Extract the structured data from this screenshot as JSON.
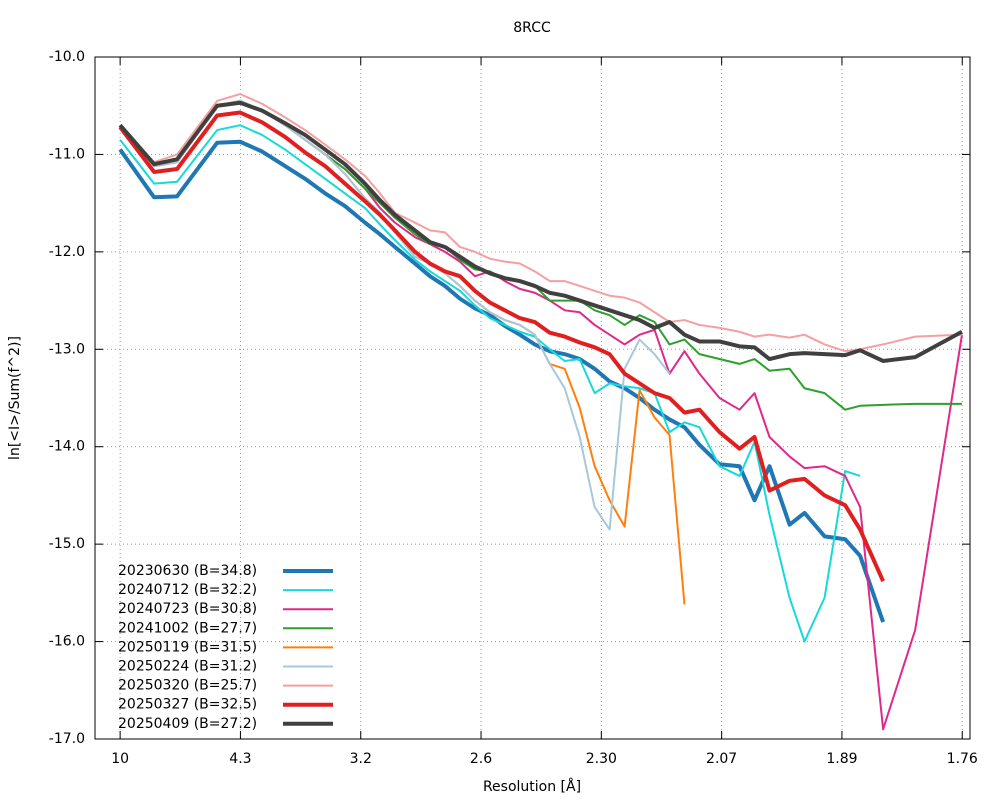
{
  "chart_data": {
    "type": "line",
    "title": "8RCC",
    "x_label": "Resolution [Å]",
    "y_label": "ln[<I>/Sum(f^2)]",
    "x": [
      0.01,
      0.0227,
      0.0313,
      0.0463,
      0.0549,
      0.0631,
      0.0717,
      0.0792,
      0.0867,
      0.0941,
      0.1016,
      0.1072,
      0.1128,
      0.1203,
      0.1259,
      0.1315,
      0.1371,
      0.1427,
      0.1483,
      0.1539,
      0.1595,
      0.1651,
      0.1707,
      0.1763,
      0.1819,
      0.1875,
      0.1931,
      0.1987,
      0.2043,
      0.2099,
      0.2155,
      0.2211,
      0.2267,
      0.2342,
      0.2417,
      0.2473,
      0.2529,
      0.2604,
      0.266,
      0.2735,
      0.2812,
      0.2868,
      0.2954,
      0.3074,
      0.3249
    ],
    "xlim": [
      0.0006,
      0.3279
    ],
    "xticks": [
      {
        "value": 0.01,
        "label": "10"
      },
      {
        "value": 0.055,
        "label": "4.3"
      },
      {
        "value": 0.1,
        "label": "3.2"
      },
      {
        "value": 0.145,
        "label": "2.6"
      },
      {
        "value": 0.19,
        "label": "2.30"
      },
      {
        "value": 0.235,
        "label": "2.07"
      },
      {
        "value": 0.28,
        "label": "1.89"
      },
      {
        "value": 0.325,
        "label": "1.76"
      }
    ],
    "ylim": [
      -17,
      -10
    ],
    "yticks": [
      {
        "value": -10,
        "label": "-10.0"
      },
      {
        "value": -11,
        "label": "-11.0"
      },
      {
        "value": -12,
        "label": "-12.0"
      },
      {
        "value": -13,
        "label": "-13.0"
      },
      {
        "value": -14,
        "label": "-14.0"
      },
      {
        "value": -15,
        "label": "-15.0"
      },
      {
        "value": -16,
        "label": "-16.0"
      },
      {
        "value": -17,
        "label": "-17.0"
      }
    ],
    "grid": true,
    "legend": "lower left",
    "series": [
      {
        "name": "20230630 (B=34.8)",
        "color": "#1f77b4",
        "width": 4,
        "values": [
          -10.95,
          -11.44,
          -11.43,
          -10.88,
          -10.87,
          -10.97,
          -11.12,
          -11.25,
          -11.4,
          -11.53,
          -11.7,
          -11.82,
          -11.95,
          -12.12,
          -12.25,
          -12.35,
          -12.48,
          -12.58,
          -12.65,
          -12.76,
          -12.85,
          -12.95,
          -13.02,
          -13.05,
          -13.1,
          -13.2,
          -13.33,
          -13.4,
          -13.5,
          -13.62,
          -13.72,
          -13.8,
          -13.98,
          -14.18,
          -14.2,
          -14.55,
          -14.2,
          -14.8,
          -14.68,
          -14.92,
          -14.95,
          -15.12,
          -15.8,
          null,
          null
        ]
      },
      {
        "name": "20240712 (B=32.2)",
        "color": "#17d9d9",
        "width": 2,
        "values": [
          -10.85,
          -11.3,
          -11.28,
          -10.75,
          -10.7,
          -10.8,
          -10.95,
          -11.1,
          -11.25,
          -11.4,
          -11.55,
          -11.72,
          -11.88,
          -12.08,
          -12.2,
          -12.3,
          -12.4,
          -12.55,
          -12.68,
          -12.75,
          -12.82,
          -12.87,
          -13.0,
          -13.12,
          -13.1,
          -13.45,
          -13.35,
          -13.38,
          -13.4,
          -13.45,
          -13.85,
          -13.75,
          -13.8,
          -14.2,
          -14.3,
          -13.95,
          -14.7,
          -15.55,
          -16.0,
          -15.55,
          -14.25,
          -14.3,
          null,
          null,
          null
        ]
      },
      {
        "name": "20240723 (B=30.8)",
        "color": "#e0288a",
        "width": 2,
        "values": [
          -10.72,
          -11.12,
          -11.08,
          -10.5,
          -10.45,
          -10.55,
          -10.7,
          -10.85,
          -11.0,
          -11.15,
          -11.35,
          -11.55,
          -11.7,
          -11.85,
          -11.92,
          -12.0,
          -12.1,
          -12.25,
          -12.2,
          -12.3,
          -12.38,
          -12.42,
          -12.5,
          -12.6,
          -12.62,
          -12.75,
          -12.85,
          -12.95,
          -12.85,
          -12.8,
          -13.25,
          -13.02,
          -13.25,
          -13.5,
          -13.62,
          -13.45,
          -13.9,
          -14.1,
          -14.22,
          -14.2,
          -14.3,
          -14.62,
          -16.9,
          -15.88,
          -12.85
        ]
      },
      {
        "name": "20241002 (B=27.7)",
        "color": "#2ca02c",
        "width": 2,
        "values": [
          -10.72,
          -11.1,
          -11.05,
          -10.5,
          -10.45,
          -10.55,
          -10.7,
          -10.85,
          -11.0,
          -11.15,
          -11.35,
          -11.5,
          -11.65,
          -11.82,
          -11.92,
          -11.95,
          -12.08,
          -12.18,
          -12.2,
          -12.28,
          -12.3,
          -12.35,
          -12.5,
          -12.5,
          -12.5,
          -12.6,
          -12.65,
          -12.75,
          -12.65,
          -12.72,
          -12.95,
          -12.9,
          -13.05,
          -13.1,
          -13.15,
          -13.1,
          -13.22,
          -13.2,
          -13.4,
          -13.45,
          -13.62,
          -13.58,
          -13.57,
          -13.56,
          -13.56
        ]
      },
      {
        "name": "20250119 (B=31.5)",
        "color": "#ff7f0e",
        "width": 2,
        "values": [
          -10.72,
          -11.12,
          -11.08,
          -10.5,
          -10.45,
          -10.55,
          -10.7,
          -10.85,
          -11.0,
          -11.2,
          -11.45,
          -11.6,
          -11.8,
          -12.05,
          -12.12,
          -12.22,
          -12.35,
          -12.5,
          -12.62,
          -12.7,
          -12.75,
          -12.85,
          -13.15,
          -13.2,
          -13.6,
          -14.2,
          -14.55,
          -14.82,
          -13.42,
          -13.7,
          -13.88,
          -15.62,
          null,
          null,
          null,
          null,
          null,
          null,
          null,
          null,
          null,
          null,
          null,
          null,
          null
        ]
      },
      {
        "name": "20250224 (B=31.2)",
        "color": "#a6c8dc",
        "width": 2,
        "values": [
          -10.72,
          -11.12,
          -11.08,
          -10.5,
          -10.45,
          -10.55,
          -10.7,
          -10.85,
          -11.0,
          -11.2,
          -11.45,
          -11.6,
          -11.8,
          -12.05,
          -12.12,
          -12.22,
          -12.35,
          -12.5,
          -12.62,
          -12.7,
          -12.75,
          -12.85,
          -13.15,
          -13.4,
          -13.9,
          -14.62,
          -14.85,
          -13.2,
          -12.9,
          -13.05,
          -13.25,
          null,
          null,
          null,
          null,
          null,
          null,
          null,
          null,
          null,
          null,
          null,
          null,
          null,
          null
        ]
      },
      {
        "name": "20250320 (B=25.7)",
        "color": "#f4a0a0",
        "width": 2,
        "values": [
          -10.7,
          -11.08,
          -11.0,
          -10.45,
          -10.38,
          -10.48,
          -10.62,
          -10.75,
          -10.9,
          -11.05,
          -11.22,
          -11.4,
          -11.6,
          -11.7,
          -11.78,
          -11.8,
          -11.95,
          -12.0,
          -12.07,
          -12.1,
          -12.12,
          -12.2,
          -12.3,
          -12.3,
          -12.35,
          -12.4,
          -12.45,
          -12.47,
          -12.52,
          -12.62,
          -12.72,
          -12.7,
          -12.75,
          -12.78,
          -12.82,
          -12.87,
          -12.85,
          -12.88,
          -12.85,
          -12.95,
          -13.02,
          -13.0,
          -12.95,
          -12.87,
          -12.85
        ]
      },
      {
        "name": "20250327 (B=32.5)",
        "color": "#e02020",
        "width": 4,
        "values": [
          -10.72,
          -11.18,
          -11.15,
          -10.6,
          -10.57,
          -10.67,
          -10.82,
          -10.98,
          -11.12,
          -11.3,
          -11.48,
          -11.62,
          -11.78,
          -12.0,
          -12.12,
          -12.2,
          -12.25,
          -12.4,
          -12.52,
          -12.6,
          -12.68,
          -12.72,
          -12.83,
          -12.87,
          -12.93,
          -12.98,
          -13.05,
          -13.25,
          -13.35,
          -13.45,
          -13.5,
          -13.65,
          -13.62,
          -13.85,
          -14.02,
          -13.9,
          -14.45,
          -14.35,
          -14.33,
          -14.5,
          -14.6,
          -14.85,
          -15.38,
          null,
          null
        ]
      },
      {
        "name": "20250409 (B=27.2)",
        "color": "#404040",
        "width": 4,
        "values": [
          -10.7,
          -11.1,
          -11.05,
          -10.5,
          -10.47,
          -10.55,
          -10.68,
          -10.8,
          -10.95,
          -11.1,
          -11.3,
          -11.47,
          -11.62,
          -11.78,
          -11.9,
          -11.95,
          -12.05,
          -12.15,
          -12.22,
          -12.27,
          -12.3,
          -12.35,
          -12.42,
          -12.45,
          -12.5,
          -12.55,
          -12.6,
          -12.65,
          -12.7,
          -12.78,
          -12.72,
          -12.85,
          -12.92,
          -12.92,
          -12.97,
          -12.98,
          -13.1,
          -13.05,
          -13.04,
          -13.05,
          -13.06,
          -13.01,
          -13.12,
          -13.08,
          -12.82
        ]
      }
    ]
  }
}
